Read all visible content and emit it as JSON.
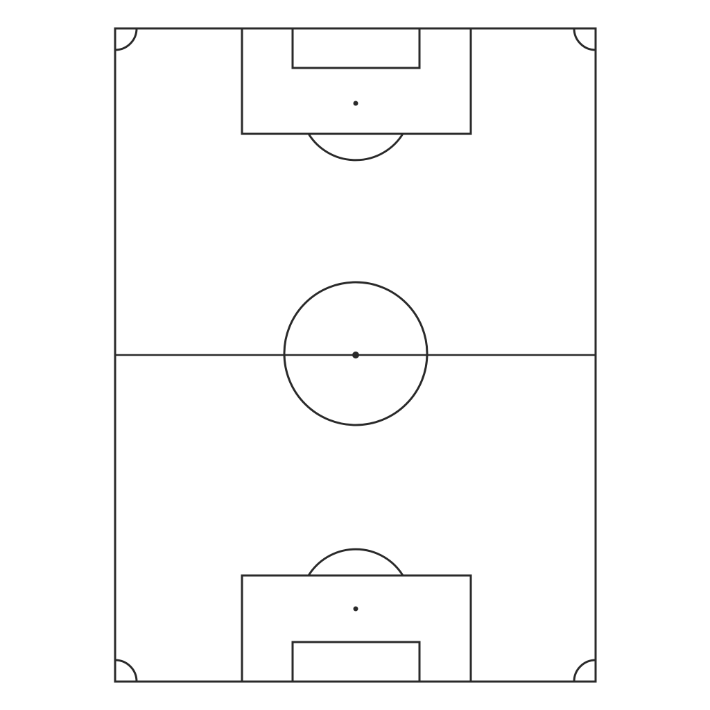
{
  "colors": {
    "background": "#ffffff",
    "line": "#2a2a2a"
  },
  "diagram": {
    "subject": "football-pitch",
    "orientation": "vertical",
    "markings": [
      "touchlines",
      "goal-lines",
      "halfway-line",
      "center-circle",
      "center-spot",
      "penalty-areas",
      "goal-areas",
      "penalty-spots",
      "penalty-arcs",
      "corner-arcs"
    ]
  }
}
